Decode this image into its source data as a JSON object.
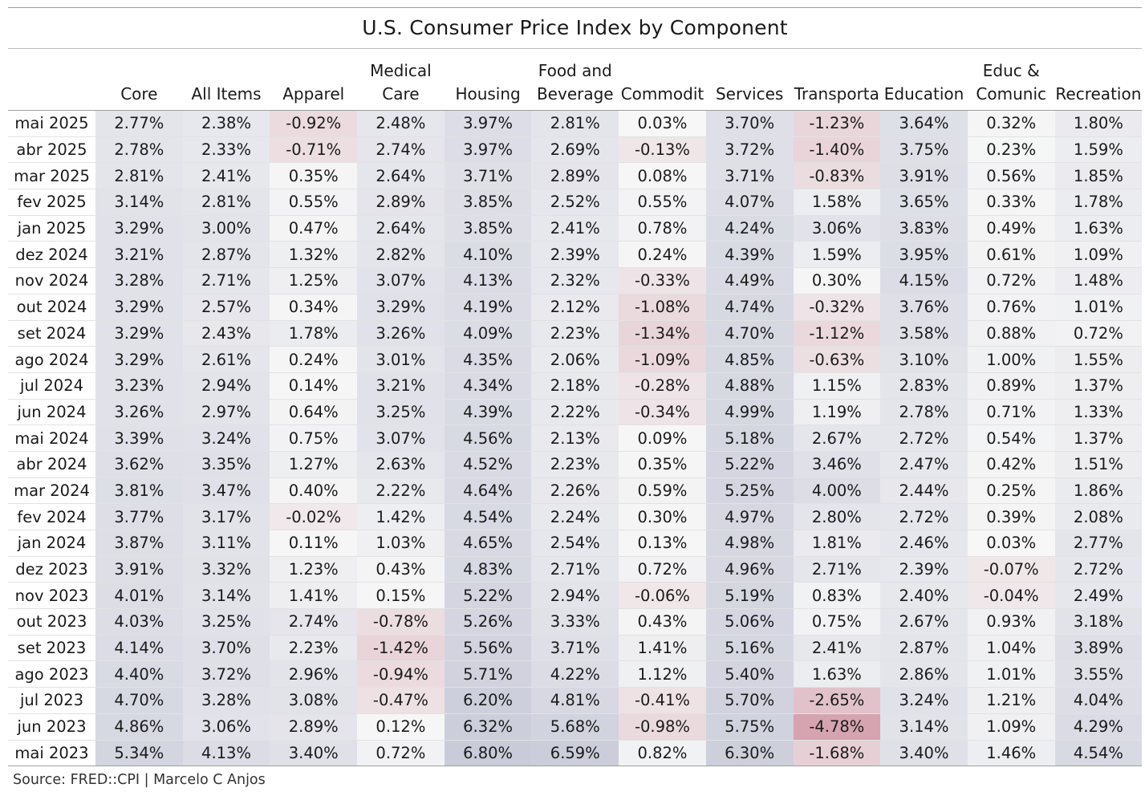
{
  "title": "U.S. Consumer Price Index by Component",
  "source": "Source: FRED::CPI | Marcelo C Anjos",
  "chart_data": {
    "type": "table",
    "columns": [
      "Core",
      "All Items",
      "Apparel",
      "Medical Care",
      "Housing",
      "Food and Beverage",
      "Commodit",
      "Services",
      "Transporta",
      "Education",
      "Educ & Comunic",
      "Recreation"
    ],
    "column_headers": [
      [
        "Core"
      ],
      [
        "All Items"
      ],
      [
        "Apparel"
      ],
      [
        "Medical",
        "Care"
      ],
      [
        "Housing"
      ],
      [
        "Food and",
        "Beverage"
      ],
      [
        "Commodit"
      ],
      [
        "Services"
      ],
      [
        "Transporta"
      ],
      [
        "Education"
      ],
      [
        "Educ &",
        "Comunic"
      ],
      [
        "Recreation"
      ]
    ],
    "rows": [
      {
        "label": "mai 2025",
        "values": [
          2.77,
          2.38,
          -0.92,
          2.48,
          3.97,
          2.81,
          0.03,
          3.7,
          -1.23,
          3.64,
          0.32,
          1.8
        ]
      },
      {
        "label": "abr 2025",
        "values": [
          2.78,
          2.33,
          -0.71,
          2.74,
          3.97,
          2.69,
          -0.13,
          3.72,
          -1.4,
          3.75,
          0.23,
          1.59
        ]
      },
      {
        "label": "mar 2025",
        "values": [
          2.81,
          2.41,
          0.35,
          2.64,
          3.71,
          2.89,
          0.08,
          3.71,
          -0.83,
          3.91,
          0.56,
          1.85
        ]
      },
      {
        "label": "fev 2025",
        "values": [
          3.14,
          2.81,
          0.55,
          2.89,
          3.85,
          2.52,
          0.55,
          4.07,
          1.58,
          3.65,
          0.33,
          1.78
        ]
      },
      {
        "label": "jan 2025",
        "values": [
          3.29,
          3.0,
          0.47,
          2.64,
          3.85,
          2.41,
          0.78,
          4.24,
          3.06,
          3.83,
          0.49,
          1.63
        ]
      },
      {
        "label": "dez 2024",
        "values": [
          3.21,
          2.87,
          1.32,
          2.82,
          4.1,
          2.39,
          0.24,
          4.39,
          1.59,
          3.95,
          0.61,
          1.09
        ]
      },
      {
        "label": "nov 2024",
        "values": [
          3.28,
          2.71,
          1.25,
          3.07,
          4.13,
          2.32,
          -0.33,
          4.49,
          0.3,
          4.15,
          0.72,
          1.48
        ]
      },
      {
        "label": "out 2024",
        "values": [
          3.29,
          2.57,
          0.34,
          3.29,
          4.19,
          2.12,
          -1.08,
          4.74,
          -0.32,
          3.76,
          0.76,
          1.01
        ]
      },
      {
        "label": "set 2024",
        "values": [
          3.29,
          2.43,
          1.78,
          3.26,
          4.09,
          2.23,
          -1.34,
          4.7,
          -1.12,
          3.58,
          0.88,
          0.72
        ]
      },
      {
        "label": "ago 2024",
        "values": [
          3.29,
          2.61,
          0.24,
          3.01,
          4.35,
          2.06,
          -1.09,
          4.85,
          -0.63,
          3.1,
          1.0,
          1.55
        ]
      },
      {
        "label": "jul 2024",
        "values": [
          3.23,
          2.94,
          0.14,
          3.21,
          4.34,
          2.18,
          -0.28,
          4.88,
          1.15,
          2.83,
          0.89,
          1.37
        ]
      },
      {
        "label": "jun 2024",
        "values": [
          3.26,
          2.97,
          0.64,
          3.25,
          4.39,
          2.22,
          -0.34,
          4.99,
          1.19,
          2.78,
          0.71,
          1.33
        ]
      },
      {
        "label": "mai 2024",
        "values": [
          3.39,
          3.24,
          0.75,
          3.07,
          4.56,
          2.13,
          0.09,
          5.18,
          2.67,
          2.72,
          0.54,
          1.37
        ]
      },
      {
        "label": "abr 2024",
        "values": [
          3.62,
          3.35,
          1.27,
          2.63,
          4.52,
          2.23,
          0.35,
          5.22,
          3.46,
          2.47,
          0.42,
          1.51
        ]
      },
      {
        "label": "mar 2024",
        "values": [
          3.81,
          3.47,
          0.4,
          2.22,
          4.64,
          2.26,
          0.59,
          5.25,
          4.0,
          2.44,
          0.25,
          1.86
        ]
      },
      {
        "label": "fev 2024",
        "values": [
          3.77,
          3.17,
          -0.02,
          1.42,
          4.54,
          2.24,
          0.3,
          4.97,
          2.8,
          2.72,
          0.39,
          2.08
        ]
      },
      {
        "label": "jan 2024",
        "values": [
          3.87,
          3.11,
          0.11,
          1.03,
          4.65,
          2.54,
          0.13,
          4.98,
          1.81,
          2.46,
          0.03,
          2.77
        ]
      },
      {
        "label": "dez 2023",
        "values": [
          3.91,
          3.32,
          1.23,
          0.43,
          4.83,
          2.71,
          0.72,
          4.96,
          2.71,
          2.39,
          -0.07,
          2.72
        ]
      },
      {
        "label": "nov 2023",
        "values": [
          4.01,
          3.14,
          1.41,
          0.15,
          5.22,
          2.94,
          -0.06,
          5.19,
          0.83,
          2.4,
          -0.04,
          2.49
        ]
      },
      {
        "label": "out 2023",
        "values": [
          4.03,
          3.25,
          2.74,
          -0.78,
          5.26,
          3.33,
          0.43,
          5.06,
          0.75,
          2.67,
          0.93,
          3.18
        ]
      },
      {
        "label": "set 2023",
        "values": [
          4.14,
          3.7,
          2.23,
          -1.42,
          5.56,
          3.71,
          1.41,
          5.16,
          2.41,
          2.87,
          1.04,
          3.89
        ]
      },
      {
        "label": "ago 2023",
        "values": [
          4.4,
          3.72,
          2.96,
          -0.94,
          5.71,
          4.22,
          1.12,
          5.4,
          1.63,
          2.86,
          1.01,
          3.55
        ]
      },
      {
        "label": "jul 2023",
        "values": [
          4.7,
          3.28,
          3.08,
          -0.47,
          6.2,
          4.81,
          -0.41,
          5.7,
          -2.65,
          3.24,
          1.21,
          4.04
        ]
      },
      {
        "label": "jun 2023",
        "values": [
          4.86,
          3.06,
          2.89,
          0.12,
          6.32,
          5.68,
          -0.98,
          5.75,
          -4.78,
          3.14,
          1.09,
          4.29
        ]
      },
      {
        "label": "mai 2023",
        "values": [
          5.34,
          4.13,
          3.4,
          0.72,
          6.8,
          6.59,
          0.82,
          6.3,
          -1.68,
          3.4,
          1.46,
          4.54
        ]
      }
    ],
    "value_suffix": "%",
    "color_scale": {
      "negative": "#c47a8c",
      "positive": "#8a8fb0",
      "neutral": "#f2f2f2"
    }
  }
}
